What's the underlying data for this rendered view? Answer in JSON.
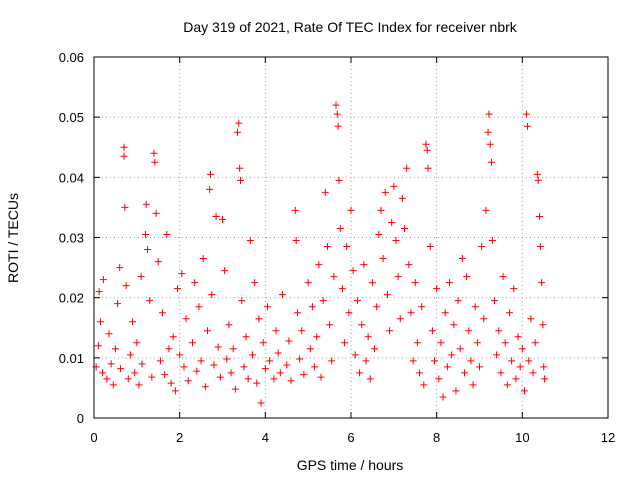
{
  "chart_data": {
    "type": "scatter",
    "title": "Day 319 of 2021, Rate Of TEC Index for receiver nbrk",
    "xlabel": "GPS time / hours",
    "ylabel": "ROTI / TECUs",
    "xlim": [
      0,
      12
    ],
    "ylim": [
      0,
      0.06
    ],
    "xticks": [
      "0",
      "2",
      "4",
      "6",
      "8",
      "10",
      "12"
    ],
    "yticks": [
      "0",
      "0.01",
      "0.02",
      "0.03",
      "0.04",
      "0.05",
      "0.06"
    ],
    "grid": true,
    "marker": "plus",
    "color": "#ff0000",
    "series": [
      {
        "name": "ROTI",
        "points": [
          [
            0.05,
            0.0085
          ],
          [
            0.1,
            0.012
          ],
          [
            0.12,
            0.021
          ],
          [
            0.15,
            0.016
          ],
          [
            0.2,
            0.0075
          ],
          [
            0.22,
            0.023
          ],
          [
            0.3,
            0.0065
          ],
          [
            0.35,
            0.014
          ],
          [
            0.4,
            0.009
          ],
          [
            0.45,
            0.0055
          ],
          [
            0.5,
            0.0115
          ],
          [
            0.55,
            0.019
          ],
          [
            0.6,
            0.025
          ],
          [
            0.62,
            0.0082
          ],
          [
            0.7,
            0.045
          ],
          [
            0.7,
            0.0435
          ],
          [
            0.72,
            0.035
          ],
          [
            0.75,
            0.022
          ],
          [
            0.8,
            0.0065
          ],
          [
            0.85,
            0.0105
          ],
          [
            0.9,
            0.016
          ],
          [
            0.95,
            0.0075
          ],
          [
            1.0,
            0.0125
          ],
          [
            1.05,
            0.0055
          ],
          [
            1.1,
            0.0235
          ],
          [
            1.12,
            0.009
          ],
          [
            1.2,
            0.0305
          ],
          [
            1.22,
            0.0355
          ],
          [
            1.25,
            0.028
          ],
          [
            1.3,
            0.0195
          ],
          [
            1.35,
            0.0068
          ],
          [
            1.4,
            0.044
          ],
          [
            1.42,
            0.0425
          ],
          [
            1.45,
            0.034
          ],
          [
            1.5,
            0.026
          ],
          [
            1.55,
            0.0095
          ],
          [
            1.6,
            0.0175
          ],
          [
            1.65,
            0.0072
          ],
          [
            1.7,
            0.0305
          ],
          [
            1.75,
            0.0115
          ],
          [
            1.8,
            0.0058
          ],
          [
            1.85,
            0.0135
          ],
          [
            1.9,
            0.0045
          ],
          [
            1.95,
            0.0215
          ],
          [
            2.0,
            0.0105
          ],
          [
            2.05,
            0.024
          ],
          [
            2.1,
            0.0085
          ],
          [
            2.15,
            0.0165
          ],
          [
            2.2,
            0.0062
          ],
          [
            2.3,
            0.0125
          ],
          [
            2.35,
            0.0225
          ],
          [
            2.4,
            0.0078
          ],
          [
            2.45,
            0.0185
          ],
          [
            2.5,
            0.0095
          ],
          [
            2.55,
            0.0265
          ],
          [
            2.6,
            0.0052
          ],
          [
            2.65,
            0.0145
          ],
          [
            2.7,
            0.038
          ],
          [
            2.72,
            0.0405
          ],
          [
            2.75,
            0.0205
          ],
          [
            2.8,
            0.0088
          ],
          [
            2.85,
            0.0335
          ],
          [
            2.9,
            0.0118
          ],
          [
            2.95,
            0.0068
          ],
          [
            3.0,
            0.033
          ],
          [
            3.05,
            0.0245
          ],
          [
            3.1,
            0.0098
          ],
          [
            3.15,
            0.0155
          ],
          [
            3.2,
            0.0075
          ],
          [
            3.25,
            0.0115
          ],
          [
            3.3,
            0.0048
          ],
          [
            3.35,
            0.0475
          ],
          [
            3.38,
            0.049
          ],
          [
            3.4,
            0.0415
          ],
          [
            3.42,
            0.0395
          ],
          [
            3.45,
            0.0195
          ],
          [
            3.5,
            0.0085
          ],
          [
            3.55,
            0.0135
          ],
          [
            3.6,
            0.0065
          ],
          [
            3.65,
            0.0295
          ],
          [
            3.7,
            0.0105
          ],
          [
            3.75,
            0.0225
          ],
          [
            3.8,
            0.0058
          ],
          [
            3.85,
            0.0165
          ],
          [
            3.9,
            0.0025
          ],
          [
            3.95,
            0.0125
          ],
          [
            4.0,
            0.0082
          ],
          [
            4.05,
            0.0185
          ],
          [
            4.1,
            0.0095
          ],
          [
            4.2,
            0.0065
          ],
          [
            4.25,
            0.0145
          ],
          [
            4.3,
            0.0108
          ],
          [
            4.35,
            0.0075
          ],
          [
            4.4,
            0.0205
          ],
          [
            4.5,
            0.0088
          ],
          [
            4.55,
            0.0128
          ],
          [
            4.6,
            0.0062
          ],
          [
            4.7,
            0.0345
          ],
          [
            4.72,
            0.0295
          ],
          [
            4.75,
            0.0175
          ],
          [
            4.8,
            0.0098
          ],
          [
            4.85,
            0.0145
          ],
          [
            4.9,
            0.0072
          ],
          [
            5.0,
            0.0225
          ],
          [
            5.05,
            0.0115
          ],
          [
            5.1,
            0.0185
          ],
          [
            5.15,
            0.0085
          ],
          [
            5.2,
            0.0135
          ],
          [
            5.25,
            0.0255
          ],
          [
            5.3,
            0.0068
          ],
          [
            5.35,
            0.0195
          ],
          [
            5.4,
            0.0375
          ],
          [
            5.45,
            0.0285
          ],
          [
            5.5,
            0.0155
          ],
          [
            5.55,
            0.0095
          ],
          [
            5.6,
            0.0235
          ],
          [
            5.65,
            0.052
          ],
          [
            5.68,
            0.0505
          ],
          [
            5.7,
            0.0485
          ],
          [
            5.72,
            0.0395
          ],
          [
            5.75,
            0.0315
          ],
          [
            5.8,
            0.0215
          ],
          [
            5.85,
            0.0125
          ],
          [
            5.9,
            0.0285
          ],
          [
            5.95,
            0.0175
          ],
          [
            6.0,
            0.0345
          ],
          [
            6.05,
            0.0245
          ],
          [
            6.1,
            0.0105
          ],
          [
            6.15,
            0.0195
          ],
          [
            6.2,
            0.0075
          ],
          [
            6.25,
            0.0155
          ],
          [
            6.3,
            0.0255
          ],
          [
            6.35,
            0.0095
          ],
          [
            6.4,
            0.0135
          ],
          [
            6.45,
            0.0065
          ],
          [
            6.5,
            0.0225
          ],
          [
            6.55,
            0.0115
          ],
          [
            6.6,
            0.0185
          ],
          [
            6.65,
            0.0305
          ],
          [
            6.7,
            0.0345
          ],
          [
            6.75,
            0.0265
          ],
          [
            6.8,
            0.0375
          ],
          [
            6.85,
            0.0205
          ],
          [
            6.9,
            0.0145
          ],
          [
            6.95,
            0.0325
          ],
          [
            7.0,
            0.0385
          ],
          [
            7.05,
            0.0295
          ],
          [
            7.1,
            0.0235
          ],
          [
            7.15,
            0.0165
          ],
          [
            7.2,
            0.0365
          ],
          [
            7.25,
            0.0315
          ],
          [
            7.3,
            0.0415
          ],
          [
            7.35,
            0.0255
          ],
          [
            7.4,
            0.0175
          ],
          [
            7.45,
            0.0095
          ],
          [
            7.5,
            0.0225
          ],
          [
            7.55,
            0.0125
          ],
          [
            7.6,
            0.0075
          ],
          [
            7.65,
            0.0185
          ],
          [
            7.7,
            0.0055
          ],
          [
            7.75,
            0.0455
          ],
          [
            7.78,
            0.0445
          ],
          [
            7.8,
            0.0415
          ],
          [
            7.85,
            0.0285
          ],
          [
            7.9,
            0.0145
          ],
          [
            7.95,
            0.0095
          ],
          [
            8.0,
            0.0215
          ],
          [
            8.05,
            0.0065
          ],
          [
            8.1,
            0.0125
          ],
          [
            8.15,
            0.0035
          ],
          [
            8.2,
            0.0175
          ],
          [
            8.25,
            0.0085
          ],
          [
            8.3,
            0.0225
          ],
          [
            8.35,
            0.0105
          ],
          [
            8.4,
            0.0155
          ],
          [
            8.45,
            0.0045
          ],
          [
            8.5,
            0.0195
          ],
          [
            8.55,
            0.0115
          ],
          [
            8.6,
            0.0265
          ],
          [
            8.65,
            0.0075
          ],
          [
            8.7,
            0.0235
          ],
          [
            8.75,
            0.0145
          ],
          [
            8.8,
            0.0095
          ],
          [
            8.85,
            0.0055
          ],
          [
            8.9,
            0.0185
          ],
          [
            8.95,
            0.0125
          ],
          [
            9.0,
            0.0085
          ],
          [
            9.05,
            0.0285
          ],
          [
            9.1,
            0.0165
          ],
          [
            9.15,
            0.0345
          ],
          [
            9.2,
            0.0475
          ],
          [
            9.22,
            0.0505
          ],
          [
            9.25,
            0.0455
          ],
          [
            9.28,
            0.0425
          ],
          [
            9.3,
            0.0295
          ],
          [
            9.35,
            0.0195
          ],
          [
            9.4,
            0.0105
          ],
          [
            9.45,
            0.0145
          ],
          [
            9.5,
            0.0075
          ],
          [
            9.55,
            0.0235
          ],
          [
            9.6,
            0.0125
          ],
          [
            9.65,
            0.0055
          ],
          [
            9.7,
            0.0175
          ],
          [
            9.75,
            0.0095
          ],
          [
            9.8,
            0.0215
          ],
          [
            9.85,
            0.0065
          ],
          [
            9.9,
            0.0135
          ],
          [
            9.95,
            0.0085
          ],
          [
            10.0,
            0.0115
          ],
          [
            10.05,
            0.0045
          ],
          [
            10.1,
            0.0505
          ],
          [
            10.12,
            0.0485
          ],
          [
            10.15,
            0.0095
          ],
          [
            10.2,
            0.0165
          ],
          [
            10.25,
            0.0075
          ],
          [
            10.3,
            0.0125
          ],
          [
            10.35,
            0.0405
          ],
          [
            10.37,
            0.0395
          ],
          [
            10.4,
            0.0335
          ],
          [
            10.42,
            0.0285
          ],
          [
            10.45,
            0.0225
          ],
          [
            10.48,
            0.0155
          ],
          [
            10.5,
            0.0085
          ],
          [
            10.52,
            0.0065
          ]
        ]
      }
    ]
  }
}
